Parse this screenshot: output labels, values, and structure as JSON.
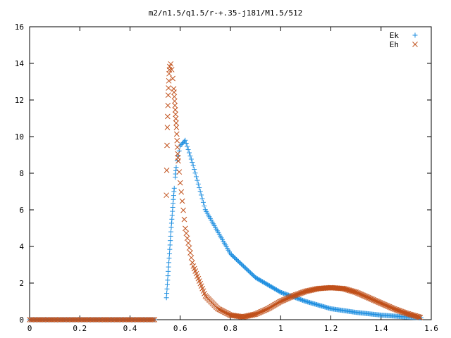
{
  "chart_data": {
    "type": "scatter",
    "title": "m2/n1.5/q1.5/r-+.35-j181/M1.5/512",
    "xlabel": "",
    "ylabel": "",
    "xlim": [
      0,
      1.6
    ],
    "ylim": [
      0,
      16
    ],
    "x_ticks": [
      "0",
      "0.2",
      "0.4",
      "0.6",
      "0.8",
      "1",
      "1.2",
      "1.4",
      "1.6"
    ],
    "y_ticks": [
      "0",
      "2",
      "4",
      "6",
      "8",
      "10",
      "12",
      "14",
      "16"
    ],
    "legend_position": "top-right",
    "grid": false,
    "series": [
      {
        "name": "Ek",
        "marker": "plus",
        "color": "#1f8fe0",
        "x": [
          0.0,
          0.1,
          0.2,
          0.3,
          0.4,
          0.5,
          0.545,
          0.555,
          0.565,
          0.575,
          0.585,
          0.6,
          0.62,
          0.65,
          0.7,
          0.8,
          0.9,
          1.0,
          1.1,
          1.2,
          1.3,
          1.4,
          1.5,
          1.56
        ],
        "y": [
          0.0,
          0.0,
          0.0,
          0.0,
          0.0,
          0.0,
          1.2,
          3.2,
          5.2,
          7.0,
          8.5,
          9.5,
          9.8,
          8.5,
          6.0,
          3.6,
          2.3,
          1.5,
          1.0,
          0.6,
          0.4,
          0.25,
          0.15,
          0.1
        ]
      },
      {
        "name": "Eh",
        "marker": "cross",
        "color": "#c0501a",
        "x": [
          0.0,
          0.1,
          0.2,
          0.3,
          0.4,
          0.5,
          0.545,
          0.548,
          0.552,
          0.556,
          0.56,
          0.565,
          0.57,
          0.575,
          0.58,
          0.585,
          0.59,
          0.6,
          0.62,
          0.65,
          0.7,
          0.75,
          0.8,
          0.85,
          0.9,
          0.95,
          1.0,
          1.05,
          1.1,
          1.15,
          1.2,
          1.25,
          1.3,
          1.35,
          1.4,
          1.45,
          1.5,
          1.55,
          1.56
        ],
        "y": [
          0.0,
          0.0,
          0.0,
          0.0,
          0.0,
          0.0,
          6.8,
          10.2,
          12.2,
          13.5,
          14.1,
          13.8,
          13.2,
          12.5,
          11.5,
          10.5,
          9.0,
          7.5,
          5.0,
          3.0,
          1.3,
          0.6,
          0.25,
          0.15,
          0.3,
          0.6,
          1.0,
          1.3,
          1.55,
          1.7,
          1.75,
          1.7,
          1.5,
          1.2,
          0.9,
          0.6,
          0.35,
          0.15,
          0.1
        ]
      }
    ]
  }
}
